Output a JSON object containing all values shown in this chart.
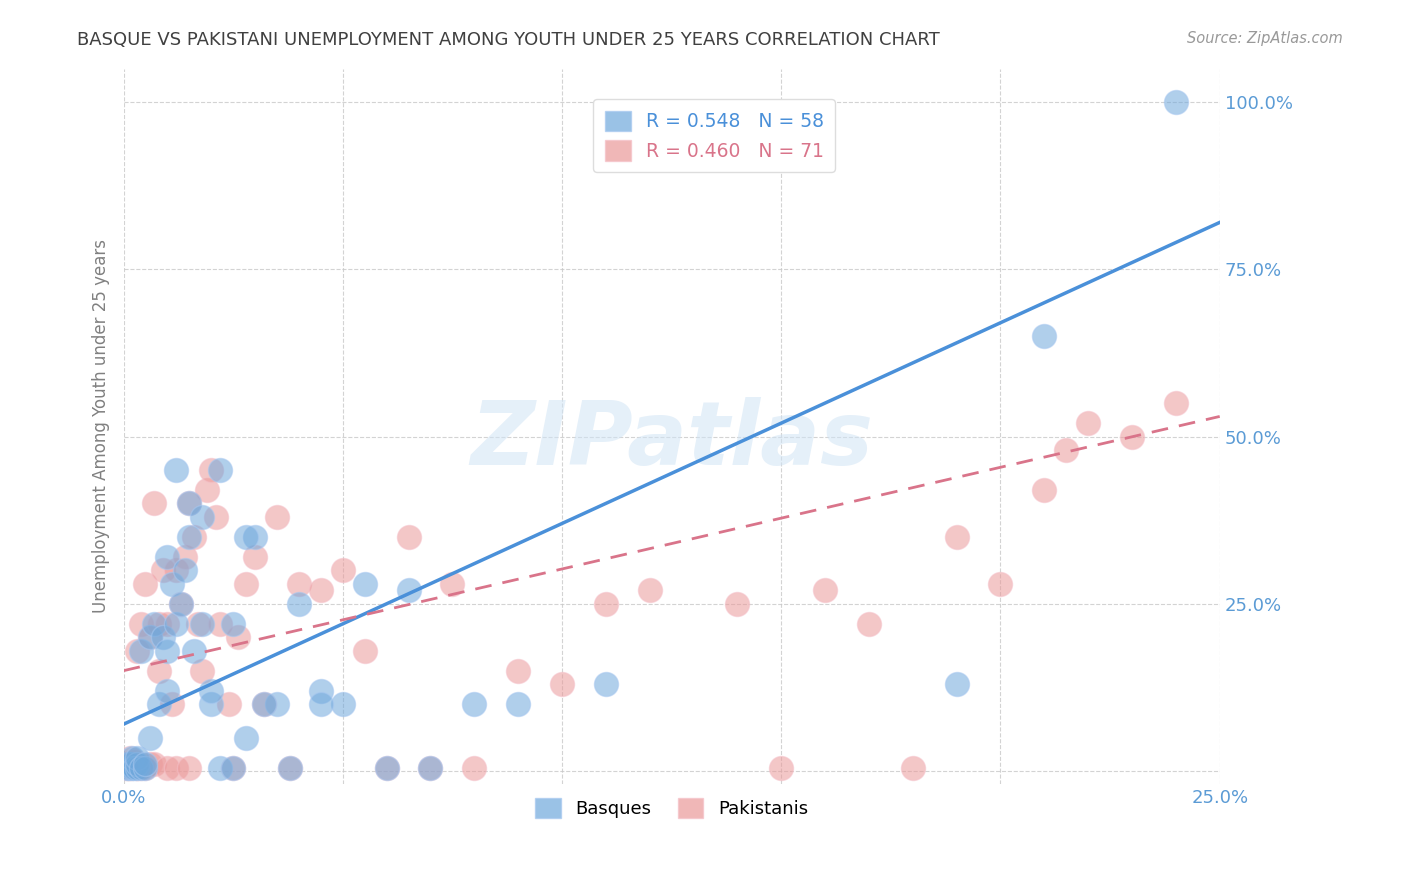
{
  "title": "BASQUE VS PAKISTANI UNEMPLOYMENT AMONG YOUTH UNDER 25 YEARS CORRELATION CHART",
  "source": "Source: ZipAtlas.com",
  "ylabel": "Unemployment Among Youth under 25 years",
  "xlim": [
    0.0,
    0.25
  ],
  "ylim": [
    -0.02,
    1.05
  ],
  "xticks": [
    0.0,
    0.05,
    0.1,
    0.15,
    0.2,
    0.25
  ],
  "yticks": [
    0.0,
    0.25,
    0.5,
    0.75,
    1.0
  ],
  "xticklabels": [
    "0.0%",
    "",
    "",
    "",
    "",
    "25.0%"
  ],
  "yticklabels_right": [
    "",
    "25.0%",
    "50.0%",
    "75.0%",
    "100.0%"
  ],
  "basque_R": 0.548,
  "basque_N": 58,
  "pakistani_R": 0.46,
  "pakistani_N": 71,
  "basque_color": "#6fa8dc",
  "pakistani_color": "#ea9999",
  "basque_line_color": "#4a90d9",
  "pakistani_line_color": "#d9748a",
  "grid_color": "#c8c8c8",
  "background_color": "#ffffff",
  "title_color": "#404040",
  "axis_label_color": "#808080",
  "tick_label_color": "#5b9bd5",
  "watermark": "ZIPatlas",
  "basque_scatter_x": [
    0.0008,
    0.001,
    0.0012,
    0.0015,
    0.002,
    0.002,
    0.0025,
    0.003,
    0.003,
    0.003,
    0.004,
    0.004,
    0.005,
    0.005,
    0.006,
    0.006,
    0.007,
    0.008,
    0.009,
    0.01,
    0.01,
    0.011,
    0.012,
    0.013,
    0.014,
    0.015,
    0.016,
    0.018,
    0.02,
    0.022,
    0.025,
    0.028,
    0.03,
    0.035,
    0.04,
    0.045,
    0.05,
    0.055,
    0.065,
    0.08,
    0.01,
    0.012,
    0.015,
    0.018,
    0.02,
    0.022,
    0.025,
    0.028,
    0.032,
    0.038,
    0.045,
    0.06,
    0.07,
    0.09,
    0.11,
    0.19,
    0.21,
    0.24
  ],
  "basque_scatter_y": [
    0.005,
    0.01,
    0.005,
    0.01,
    0.005,
    0.02,
    0.005,
    0.005,
    0.01,
    0.02,
    0.005,
    0.18,
    0.005,
    0.01,
    0.2,
    0.05,
    0.22,
    0.1,
    0.2,
    0.18,
    0.32,
    0.28,
    0.22,
    0.25,
    0.3,
    0.4,
    0.18,
    0.38,
    0.1,
    0.45,
    0.22,
    0.05,
    0.35,
    0.1,
    0.25,
    0.12,
    0.1,
    0.28,
    0.27,
    0.1,
    0.12,
    0.45,
    0.35,
    0.22,
    0.12,
    0.005,
    0.005,
    0.35,
    0.1,
    0.005,
    0.1,
    0.005,
    0.005,
    0.1,
    0.13,
    0.13,
    0.65,
    1.0
  ],
  "pakistani_scatter_x": [
    0.0005,
    0.001,
    0.001,
    0.0012,
    0.0015,
    0.002,
    0.002,
    0.0025,
    0.003,
    0.003,
    0.003,
    0.004,
    0.004,
    0.005,
    0.005,
    0.006,
    0.006,
    0.007,
    0.007,
    0.008,
    0.008,
    0.009,
    0.01,
    0.01,
    0.011,
    0.012,
    0.012,
    0.013,
    0.014,
    0.015,
    0.015,
    0.016,
    0.017,
    0.018,
    0.019,
    0.02,
    0.021,
    0.022,
    0.024,
    0.025,
    0.026,
    0.028,
    0.03,
    0.032,
    0.035,
    0.038,
    0.04,
    0.045,
    0.05,
    0.055,
    0.06,
    0.065,
    0.07,
    0.075,
    0.08,
    0.09,
    0.1,
    0.11,
    0.12,
    0.14,
    0.15,
    0.16,
    0.17,
    0.18,
    0.19,
    0.2,
    0.21,
    0.215,
    0.22,
    0.23,
    0.24
  ],
  "pakistani_scatter_y": [
    0.005,
    0.005,
    0.01,
    0.005,
    0.02,
    0.005,
    0.01,
    0.015,
    0.005,
    0.005,
    0.18,
    0.005,
    0.22,
    0.005,
    0.28,
    0.01,
    0.2,
    0.01,
    0.4,
    0.15,
    0.22,
    0.3,
    0.005,
    0.22,
    0.1,
    0.005,
    0.3,
    0.25,
    0.32,
    0.005,
    0.4,
    0.35,
    0.22,
    0.15,
    0.42,
    0.45,
    0.38,
    0.22,
    0.1,
    0.005,
    0.2,
    0.28,
    0.32,
    0.1,
    0.38,
    0.005,
    0.28,
    0.27,
    0.3,
    0.18,
    0.005,
    0.35,
    0.005,
    0.28,
    0.005,
    0.15,
    0.13,
    0.25,
    0.27,
    0.25,
    0.005,
    0.27,
    0.22,
    0.005,
    0.35,
    0.28,
    0.42,
    0.48,
    0.52,
    0.5,
    0.55
  ],
  "basque_line_x": [
    0.0,
    0.25
  ],
  "basque_line_y": [
    0.07,
    0.82
  ],
  "pakistani_line_x": [
    0.0,
    0.25
  ],
  "pakistani_line_y": [
    0.15,
    0.53
  ]
}
